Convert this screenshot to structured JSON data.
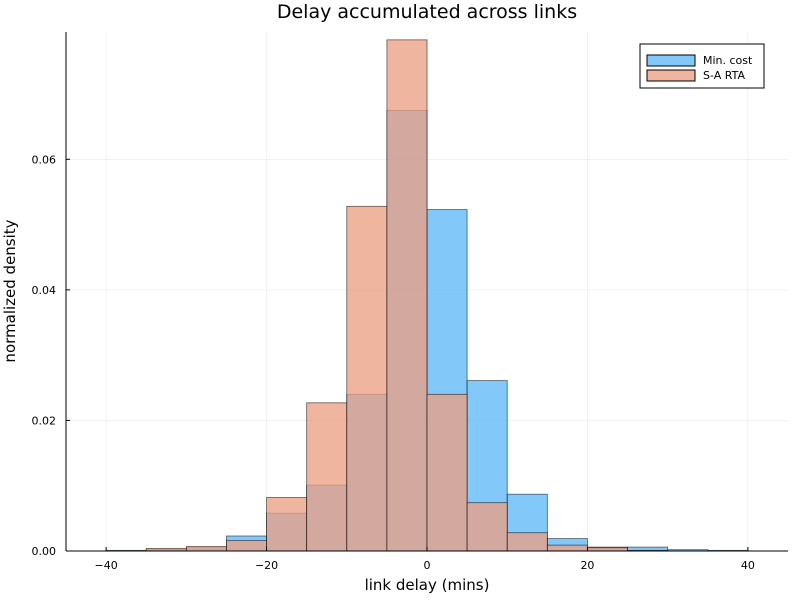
{
  "chart_data": {
    "type": "bar",
    "title": "Delay accumulated across links",
    "xlabel": "link delay (mins)",
    "ylabel": "normalized density",
    "xlim": [
      -45,
      45
    ],
    "ylim": [
      0,
      0.0795
    ],
    "xticks": [
      -40,
      -20,
      0,
      20,
      40
    ],
    "xtick_labels": [
      "−40",
      "−20",
      "0",
      "20",
      "40"
    ],
    "yticks": [
      0.0,
      0.02,
      0.04,
      0.06
    ],
    "ytick_labels": [
      "0.00",
      "0.02",
      "0.04",
      "0.06"
    ],
    "grid": true,
    "legend_position": "top-right",
    "bin_edges": [
      -40,
      -35,
      -30,
      -25,
      -20,
      -15,
      -10,
      -5,
      0,
      5,
      10,
      15,
      20,
      25,
      30,
      35,
      40
    ],
    "series": [
      {
        "name": "Min. cost",
        "color": "#5db8f7",
        "values": [
          0.0001,
          0.0002,
          0.0005,
          0.0023,
          0.0058,
          0.0101,
          0.024,
          0.0675,
          0.0523,
          0.0261,
          0.0087,
          0.0019,
          0.0006,
          0.0006,
          0.0002,
          0.0001
        ]
      },
      {
        "name": "S-A RTA",
        "color": "#ec9f82",
        "values": [
          0.0,
          0.0004,
          0.0007,
          0.0016,
          0.0082,
          0.0227,
          0.0528,
          0.0783,
          0.024,
          0.0074,
          0.0028,
          0.0009,
          0.0005,
          0.0001,
          0.0,
          0.0
        ]
      }
    ]
  }
}
